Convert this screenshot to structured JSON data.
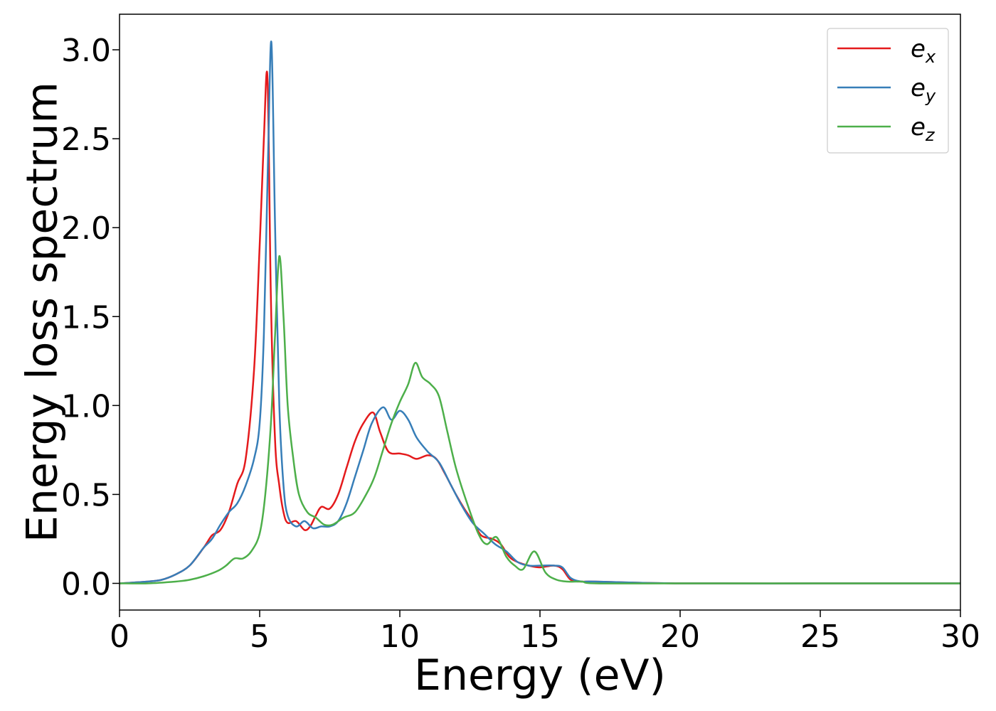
{
  "chart_data": {
    "type": "line",
    "xlabel": "Energy (eV)",
    "ylabel": "Energy loss spectrum",
    "xlim": [
      0,
      30
    ],
    "ylim": [
      -0.15,
      3.2
    ],
    "xticks": [
      0,
      5,
      10,
      15,
      20,
      25,
      30
    ],
    "xtick_labels": [
      "0",
      "5",
      "10",
      "15",
      "20",
      "25",
      "30"
    ],
    "yticks": [
      0.0,
      0.5,
      1.0,
      1.5,
      2.0,
      2.5,
      3.0
    ],
    "ytick_labels": [
      "0.0",
      "0.5",
      "1.0",
      "1.5",
      "2.0",
      "2.5",
      "3.0"
    ],
    "grid": false,
    "legend_position": "top-right",
    "series": [
      {
        "name": "e",
        "subscript": "x",
        "color": "#e41a1c",
        "x": [
          0,
          1,
          1.5,
          2,
          2.5,
          3,
          3.3,
          3.6,
          3.9,
          4.2,
          4.5,
          4.8,
          5.0,
          5.15,
          5.28,
          5.4,
          5.55,
          5.7,
          5.85,
          6.0,
          6.3,
          6.6,
          6.8,
          7.0,
          7.2,
          7.5,
          7.8,
          8.1,
          8.4,
          8.7,
          9.05,
          9.3,
          9.6,
          10.0,
          10.3,
          10.6,
          11.0,
          11.3,
          11.6,
          12.0,
          12.3,
          12.6,
          12.9,
          13.3,
          13.6,
          13.9,
          14.2,
          14.6,
          15.0,
          15.5,
          15.8,
          16.1,
          16.5,
          17,
          20,
          25,
          30
        ],
        "y": [
          0.0,
          0.01,
          0.02,
          0.05,
          0.1,
          0.2,
          0.27,
          0.3,
          0.4,
          0.56,
          0.7,
          1.2,
          1.9,
          2.5,
          2.84,
          1.6,
          0.8,
          0.55,
          0.4,
          0.34,
          0.35,
          0.3,
          0.32,
          0.38,
          0.43,
          0.42,
          0.5,
          0.65,
          0.8,
          0.9,
          0.96,
          0.85,
          0.74,
          0.73,
          0.72,
          0.7,
          0.72,
          0.7,
          0.62,
          0.5,
          0.42,
          0.35,
          0.27,
          0.25,
          0.22,
          0.15,
          0.12,
          0.1,
          0.09,
          0.1,
          0.08,
          0.02,
          0.01,
          0.01,
          0.0,
          0.0,
          0.0
        ]
      },
      {
        "name": "e",
        "subscript": "y",
        "color": "#377eb8",
        "x": [
          0,
          1,
          1.5,
          2,
          2.5,
          3,
          3.3,
          3.6,
          3.9,
          4.2,
          4.5,
          4.8,
          5.0,
          5.15,
          5.3,
          5.42,
          5.55,
          5.7,
          5.85,
          6.0,
          6.3,
          6.6,
          6.9,
          7.2,
          7.5,
          7.8,
          8.1,
          8.4,
          8.7,
          9.0,
          9.4,
          9.7,
          10.0,
          10.3,
          10.6,
          11.0,
          11.4,
          11.8,
          12.2,
          12.6,
          13.0,
          13.4,
          13.8,
          14.2,
          14.6,
          15.0,
          15.5,
          15.8,
          16.1,
          16.5,
          17,
          20,
          25,
          30
        ],
        "y": [
          0.0,
          0.01,
          0.02,
          0.05,
          0.1,
          0.2,
          0.25,
          0.33,
          0.4,
          0.45,
          0.55,
          0.7,
          0.9,
          1.4,
          2.4,
          3.04,
          2.0,
          1.0,
          0.55,
          0.38,
          0.32,
          0.35,
          0.31,
          0.32,
          0.32,
          0.35,
          0.45,
          0.6,
          0.75,
          0.9,
          0.99,
          0.92,
          0.97,
          0.92,
          0.82,
          0.74,
          0.68,
          0.56,
          0.44,
          0.34,
          0.28,
          0.22,
          0.18,
          0.12,
          0.1,
          0.1,
          0.1,
          0.09,
          0.03,
          0.01,
          0.01,
          0.0,
          0.0,
          0.0
        ]
      },
      {
        "name": "e",
        "subscript": "z",
        "color": "#4daf4a",
        "x": [
          0,
          1,
          2,
          2.5,
          3,
          3.5,
          3.8,
          4.1,
          4.4,
          4.7,
          5.0,
          5.2,
          5.4,
          5.55,
          5.7,
          5.85,
          6.0,
          6.2,
          6.4,
          6.7,
          7.0,
          7.3,
          7.6,
          8.0,
          8.4,
          8.8,
          9.1,
          9.4,
          9.7,
          10.0,
          10.3,
          10.55,
          10.8,
          11.1,
          11.4,
          11.7,
          12.0,
          12.4,
          12.8,
          13.1,
          13.45,
          13.8,
          14.1,
          14.4,
          14.8,
          15.2,
          15.6,
          16.0,
          16.5,
          17,
          20,
          25,
          30
        ],
        "y": [
          0.0,
          0.0,
          0.01,
          0.02,
          0.04,
          0.07,
          0.1,
          0.14,
          0.14,
          0.18,
          0.28,
          0.5,
          0.9,
          1.4,
          1.84,
          1.5,
          1.0,
          0.7,
          0.5,
          0.4,
          0.37,
          0.33,
          0.33,
          0.37,
          0.4,
          0.5,
          0.6,
          0.75,
          0.9,
          1.02,
          1.12,
          1.24,
          1.16,
          1.12,
          1.05,
          0.85,
          0.65,
          0.45,
          0.28,
          0.22,
          0.26,
          0.15,
          0.1,
          0.08,
          0.18,
          0.06,
          0.02,
          0.01,
          0.01,
          0.0,
          0.0,
          0.0,
          0.0
        ]
      }
    ]
  }
}
